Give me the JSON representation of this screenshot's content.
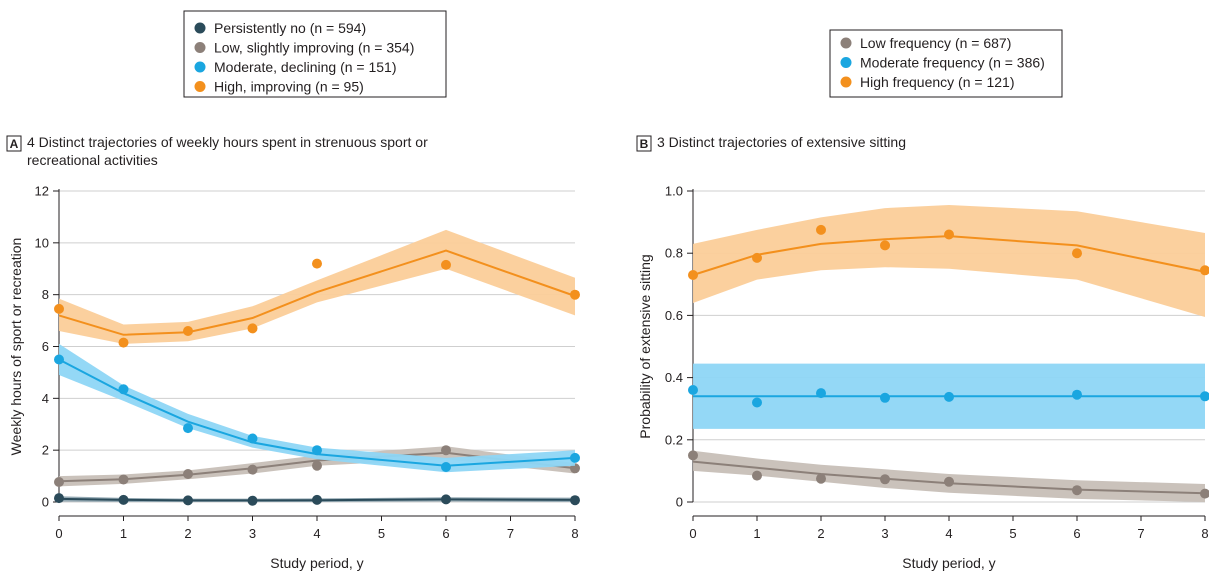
{
  "colors": {
    "dark": "#2b4b5a",
    "gray": "#8c8079",
    "blue": "#1aa6e0",
    "orange": "#f3901d",
    "gray_band": "#c7bfb7",
    "blue_band": "#8ed6f5",
    "orange_band": "#fbcd99",
    "dark_band": "#8fa5b0"
  },
  "chart_data": [
    {
      "panel_letter": "A",
      "type": "line",
      "title_lines": [
        "4 Distinct trajectories of weekly hours spent in strenuous sport or",
        "recreational activities"
      ],
      "xlabel": "Study period, y",
      "ylabel": "Weekly hours of sport or recreation",
      "xlim": [
        0,
        8
      ],
      "ylim": [
        0,
        12
      ],
      "x_ticks": [
        0,
        1,
        2,
        3,
        4,
        5,
        6,
        7,
        8
      ],
      "y_ticks": [
        0,
        2,
        4,
        6,
        8,
        10,
        12
      ],
      "y_tick_labels": [
        "0",
        "2",
        "4",
        "6",
        "8",
        "10",
        "12"
      ],
      "grid": "horizontal",
      "legend": [
        {
          "label": "Persistently no (n = 594)",
          "color_key": "dark"
        },
        {
          "label": "Low, slightly improving (n = 354)",
          "color_key": "gray"
        },
        {
          "label": "Moderate, declining (n = 151)",
          "color_key": "blue"
        },
        {
          "label": "High, improving (n = 95)",
          "color_key": "orange"
        }
      ],
      "series": [
        {
          "color_key": "dark",
          "band_key": "dark_band",
          "fit_x": [
            0,
            1,
            2,
            3,
            4,
            6,
            8
          ],
          "fit": [
            0.12,
            0.08,
            0.06,
            0.06,
            0.07,
            0.1,
            0.08
          ],
          "lower": [
            0.02,
            0.0,
            0.0,
            0.0,
            0.0,
            0.02,
            0.0
          ],
          "upper": [
            0.22,
            0.16,
            0.13,
            0.13,
            0.14,
            0.18,
            0.17
          ],
          "points_x": [
            0,
            1,
            2,
            3,
            4,
            6,
            8
          ],
          "points": [
            0.15,
            0.08,
            0.06,
            0.05,
            0.08,
            0.1,
            0.07
          ]
        },
        {
          "color_key": "gray",
          "band_key": "gray_band",
          "fit_x": [
            0,
            1,
            2,
            3,
            4,
            6,
            8
          ],
          "fit": [
            0.8,
            0.88,
            1.05,
            1.3,
            1.6,
            1.9,
            1.3
          ],
          "lower": [
            0.6,
            0.7,
            0.88,
            1.1,
            1.4,
            1.65,
            1.1
          ],
          "upper": [
            1.0,
            1.06,
            1.22,
            1.5,
            1.8,
            2.15,
            1.5
          ],
          "points_x": [
            0,
            1,
            2,
            3,
            4,
            6,
            8
          ],
          "points": [
            0.77,
            0.87,
            1.08,
            1.25,
            1.4,
            2.0,
            1.3
          ]
        },
        {
          "color_key": "blue",
          "band_key": "blue_band",
          "fit_x": [
            0,
            1,
            2,
            3,
            4,
            6,
            8
          ],
          "fit": [
            5.5,
            4.2,
            3.1,
            2.3,
            1.85,
            1.4,
            1.7
          ],
          "lower": [
            4.9,
            3.9,
            2.85,
            2.1,
            1.65,
            1.15,
            1.4
          ],
          "upper": [
            6.1,
            4.5,
            3.4,
            2.55,
            2.1,
            1.7,
            2.0
          ],
          "points_x": [
            0,
            1,
            2,
            3,
            4,
            6,
            8
          ],
          "points": [
            5.5,
            4.35,
            2.85,
            2.45,
            2.0,
            1.35,
            1.7
          ]
        },
        {
          "color_key": "orange",
          "band_key": "orange_band",
          "fit_x": [
            0,
            1,
            2,
            3,
            4,
            6,
            8
          ],
          "fit": [
            7.2,
            6.45,
            6.55,
            7.1,
            8.1,
            9.7,
            7.95
          ],
          "lower": [
            6.6,
            6.1,
            6.2,
            6.7,
            7.7,
            9.0,
            7.2
          ],
          "upper": [
            7.85,
            6.85,
            6.95,
            7.55,
            8.55,
            10.5,
            8.65
          ],
          "points_x": [
            0,
            1,
            2,
            3,
            4,
            6,
            8
          ],
          "points": [
            7.45,
            6.15,
            6.6,
            6.7,
            9.2,
            9.15,
            8.0
          ]
        }
      ]
    },
    {
      "panel_letter": "B",
      "type": "line",
      "title_lines": [
        "3 Distinct trajectories of extensive sitting"
      ],
      "xlabel": "Study period, y",
      "ylabel": "Probability of extensive sitting",
      "xlim": [
        0,
        8
      ],
      "ylim": [
        0,
        1.0
      ],
      "x_ticks": [
        0,
        1,
        2,
        3,
        4,
        5,
        6,
        7,
        8
      ],
      "y_ticks": [
        0,
        0.2,
        0.4,
        0.6,
        0.8,
        1.0
      ],
      "y_tick_labels": [
        "0",
        "0.2",
        "0.4",
        "0.6",
        "0.8",
        "1.0"
      ],
      "grid": "horizontal",
      "legend": [
        {
          "label": "Low frequency (n = 687)",
          "color_key": "gray"
        },
        {
          "label": "Moderate frequency (n = 386)",
          "color_key": "blue"
        },
        {
          "label": "High frequency (n = 121)",
          "color_key": "orange"
        }
      ],
      "series": [
        {
          "color_key": "gray",
          "band_key": "gray_band",
          "fit_x": [
            0,
            1,
            2,
            3,
            4,
            6,
            8
          ],
          "fit": [
            0.13,
            0.11,
            0.09,
            0.075,
            0.06,
            0.04,
            0.028
          ],
          "lower": [
            0.1,
            0.085,
            0.065,
            0.045,
            0.03,
            0.01,
            0.0
          ],
          "upper": [
            0.165,
            0.14,
            0.12,
            0.105,
            0.09,
            0.07,
            0.058
          ],
          "points_x": [
            0,
            1,
            2,
            3,
            4,
            6,
            8
          ],
          "points": [
            0.15,
            0.085,
            0.075,
            0.073,
            0.065,
            0.038,
            0.027
          ]
        },
        {
          "color_key": "blue",
          "band_key": "blue_band",
          "fit_x": [
            0,
            1,
            2,
            3,
            4,
            6,
            8
          ],
          "fit": [
            0.34,
            0.34,
            0.34,
            0.34,
            0.34,
            0.34,
            0.34
          ],
          "lower": [
            0.235,
            0.235,
            0.235,
            0.235,
            0.235,
            0.235,
            0.235
          ],
          "upper": [
            0.445,
            0.445,
            0.445,
            0.445,
            0.445,
            0.445,
            0.445
          ],
          "points_x": [
            0,
            1,
            2,
            3,
            4,
            6,
            8
          ],
          "points": [
            0.36,
            0.32,
            0.35,
            0.335,
            0.338,
            0.345,
            0.34
          ]
        },
        {
          "color_key": "orange",
          "band_key": "orange_band",
          "fit_x": [
            0,
            1,
            2,
            3,
            4,
            6,
            8
          ],
          "fit": [
            0.73,
            0.795,
            0.83,
            0.845,
            0.855,
            0.825,
            0.74
          ],
          "lower": [
            0.64,
            0.715,
            0.745,
            0.755,
            0.75,
            0.715,
            0.595
          ],
          "upper": [
            0.83,
            0.875,
            0.915,
            0.945,
            0.955,
            0.935,
            0.865
          ],
          "points_x": [
            0,
            1,
            2,
            3,
            4,
            6,
            8
          ],
          "points": [
            0.73,
            0.785,
            0.875,
            0.825,
            0.86,
            0.8,
            0.745
          ]
        }
      ]
    }
  ]
}
